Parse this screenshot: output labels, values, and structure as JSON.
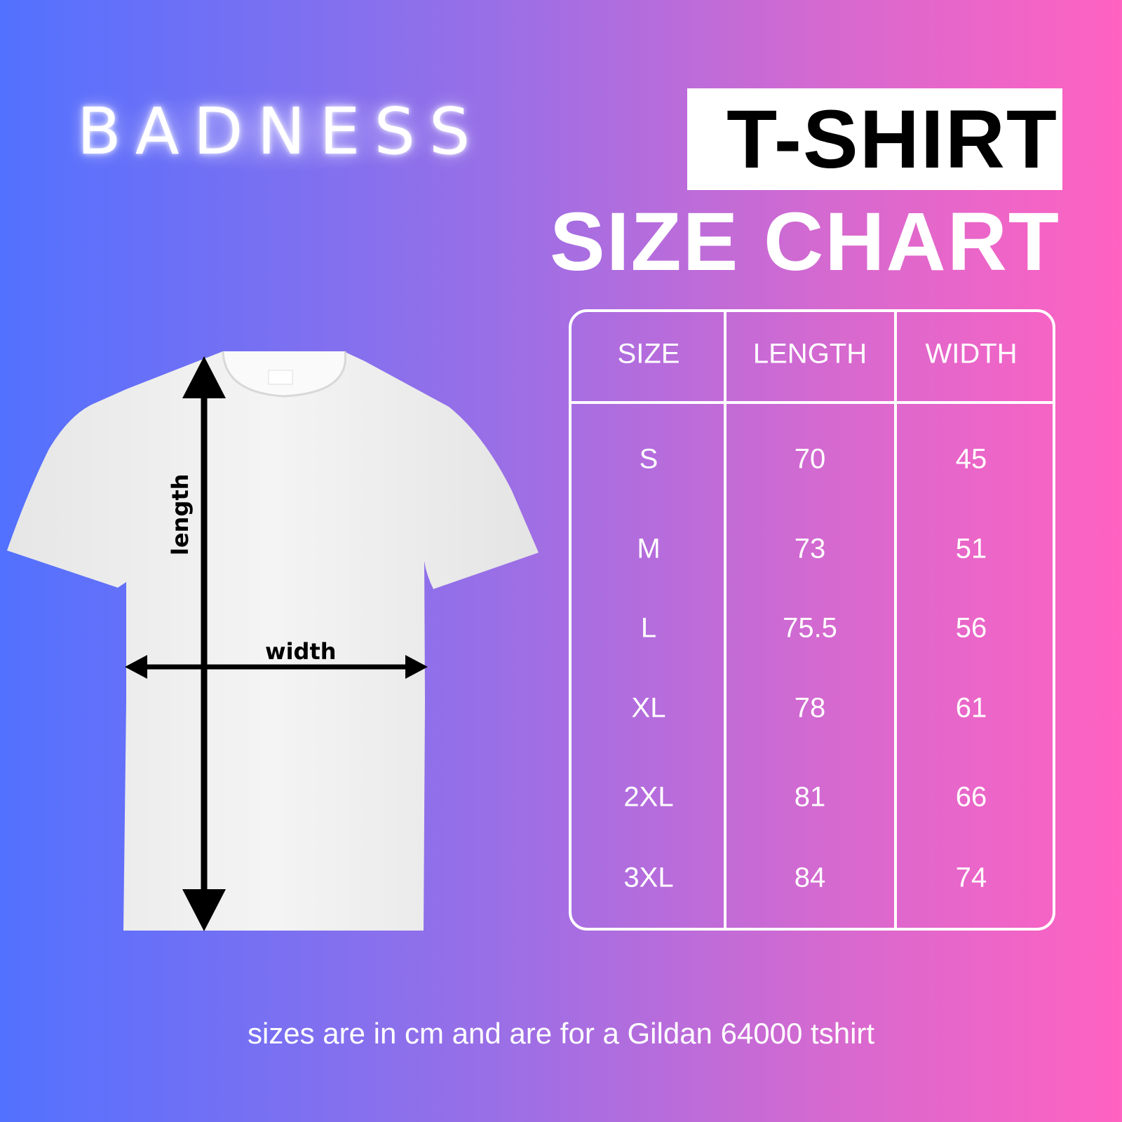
{
  "brand": {
    "logo_text": "BADNESS"
  },
  "title": {
    "line1": "T-SHIRT",
    "line2": "SIZE CHART"
  },
  "diagram": {
    "length_label": "length",
    "width_label": "width"
  },
  "table": {
    "headers": [
      "SIZE",
      "LENGTH",
      "WIDTH"
    ],
    "rows": [
      [
        "S",
        "70",
        "45"
      ],
      [
        "M",
        "73",
        "51"
      ],
      [
        "L",
        "75.5",
        "56"
      ],
      [
        "XL",
        "78",
        "61"
      ],
      [
        "2XL",
        "81",
        "66"
      ],
      [
        "3XL",
        "84",
        "74"
      ]
    ]
  },
  "footnote": "sizes are in cm and are for a Gildan 64000 tshirt",
  "colors": {
    "gradient_start": "#5271ff",
    "gradient_end": "#ff62c1",
    "shirt": "#f2f2f2"
  }
}
